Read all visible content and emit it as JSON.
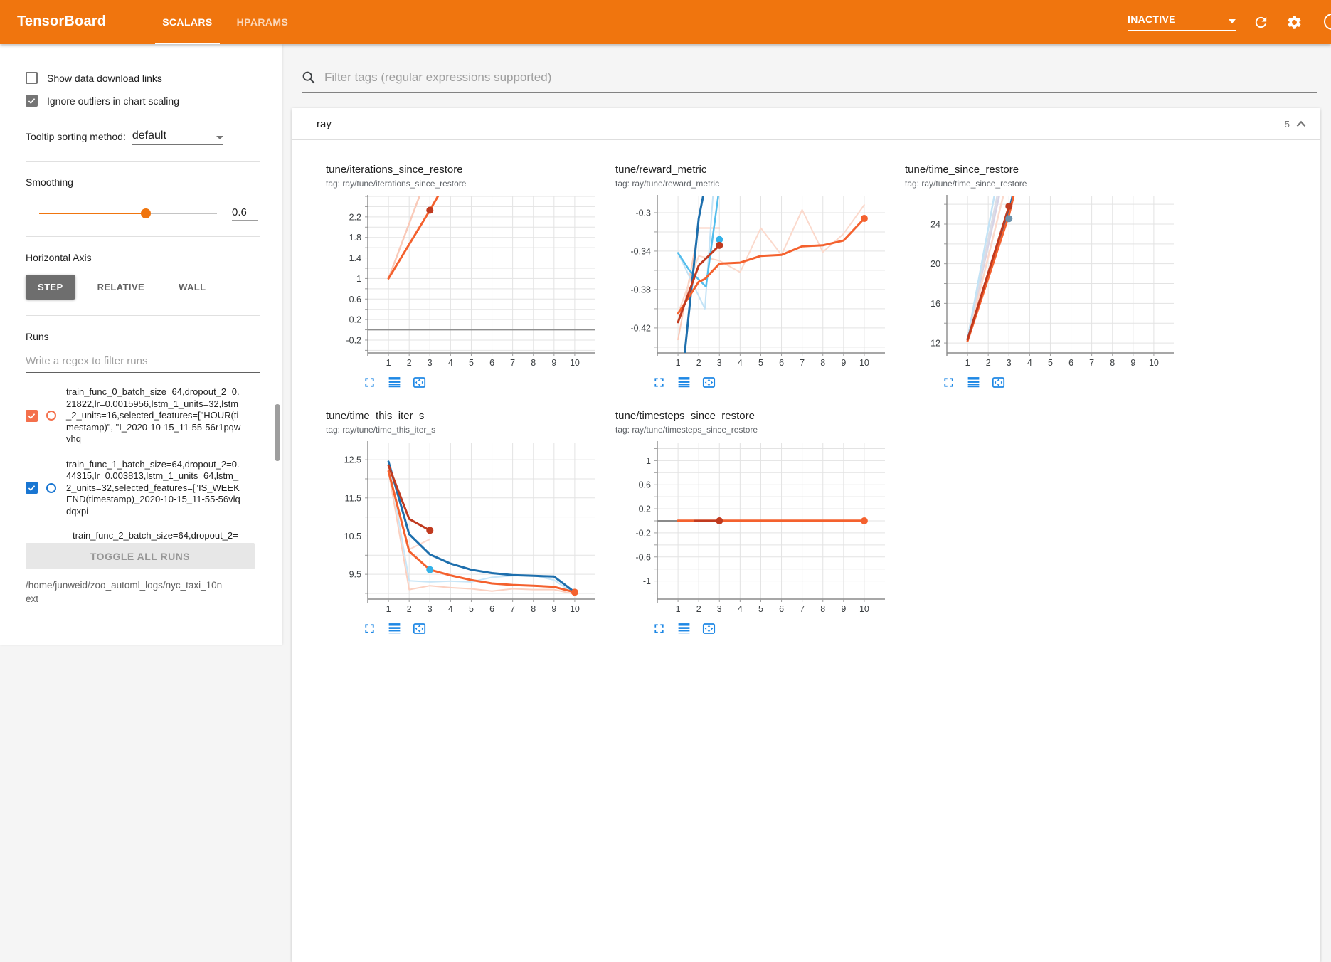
{
  "header": {
    "title": "TensorBoard",
    "tabs": [
      {
        "label": "SCALARS",
        "active": true
      },
      {
        "label": "HPARAMS",
        "active": false
      }
    ],
    "status_dropdown": "INACTIVE",
    "bar_color": "#f0750e"
  },
  "sidebar": {
    "show_download_label": "Show data download links",
    "show_download_checked": false,
    "ignore_outliers_label": "Ignore outliers in chart scaling",
    "ignore_outliers_checked": true,
    "tooltip_sorting_label": "Tooltip sorting method:",
    "tooltip_sorting_value": "default",
    "smoothing_label": "Smoothing",
    "smoothing_value": "0.6",
    "horizontal_axis_label": "Horizontal Axis",
    "axis_modes": [
      "STEP",
      "RELATIVE",
      "WALL"
    ],
    "axis_mode_active": "STEP",
    "runs_label": "Runs",
    "runs_filter_placeholder": "Write a regex to filter runs",
    "runs": [
      {
        "label": "train_func_0_batch_size=64,dropout_2=0.21822,lr=0.0015956,lstm_1_units=32,lstm_2_units=16,selected_features=[\"HOUR(timestamp)\", \"I_2020-10-15_11-55-56r1pqwvhq",
        "color": "#f4704c",
        "checked": true,
        "clipped": false
      },
      {
        "label": "train_func_1_batch_size=64,dropout_2=0.44315,lr=0.003813,lstm_1_units=64,lstm_2_units=32,selected_features=[\"IS_WEEKEND(timestamp)_2020-10-15_11-55-56vlqdqxpi",
        "color": "#1976d2",
        "checked": true,
        "clipped": false
      },
      {
        "label": "train_func_2_batch_size=64,dropout_2=",
        "color": "#9e9e9e",
        "checked": false,
        "clipped": true
      }
    ],
    "toggle_all_label": "TOGGLE ALL RUNS",
    "logdir": "/home/junweid/zoo_automl_logs/nyc_taxi_10next"
  },
  "main": {
    "filter_placeholder": "Filter tags (regular expressions supported)",
    "section": {
      "name": "ray",
      "count": "5"
    },
    "chart_toolbar_icons": [
      "expand-chart-icon",
      "run-lines-icon",
      "fit-domain-icon"
    ]
  },
  "chart_data": [
    {
      "type": "line",
      "title": "tune/iterations_since_restore",
      "tag": "tag: ray/tune/iterations_since_restore",
      "x_ticks": [
        1,
        2,
        3,
        4,
        5,
        6,
        7,
        8,
        9,
        10
      ],
      "x_range": [
        0,
        11
      ],
      "y_range": [
        -0.45,
        2.6
      ],
      "y_tick_values": [
        2.2,
        1.8,
        1.4,
        1,
        0.6,
        0.2,
        -0.2
      ],
      "y_tick_labels": [
        "2.2",
        "1.8",
        "1.4",
        "1",
        "0.6",
        "0.2",
        "-0.2"
      ],
      "y_minor_step": 0.2,
      "series": [
        {
          "name": "zero-baseline",
          "color": "#8f8f8f",
          "width": 1.8,
          "points": [
            [
              0,
              0
            ],
            [
              11,
              0
            ]
          ]
        },
        {
          "name": "run0-raw",
          "color": "#f9c9b8",
          "width": 2.5,
          "points": [
            [
              1,
              1
            ],
            [
              2.68,
              2.8
            ]
          ]
        },
        {
          "name": "run0-smoothed",
          "color": "#f4612e",
          "width": 3,
          "points": [
            [
              1,
              1
            ],
            [
              3,
              2.33
            ],
            [
              3.5,
              2.68
            ]
          ]
        }
      ],
      "dots": [
        {
          "x": 3,
          "y": 2.33,
          "color": "#c03a1f"
        }
      ]
    },
    {
      "type": "line",
      "title": "tune/reward_metric",
      "tag": "tag: ray/tune/reward_metric",
      "x_ticks": [
        1,
        2,
        3,
        4,
        5,
        6,
        7,
        8,
        9,
        10
      ],
      "x_range": [
        0,
        11
      ],
      "y_range": [
        -0.446,
        -0.283
      ],
      "y_tick_values": [
        -0.3,
        -0.34,
        -0.38,
        -0.42
      ],
      "y_tick_labels": [
        "-0.3",
        "-0.34",
        "-0.38",
        "-0.42"
      ],
      "y_minor_step": 0.02,
      "series": [
        {
          "name": "run0-raw",
          "color": "#f9c9b8",
          "width": 2,
          "points": [
            [
              1,
              -0.432
            ],
            [
              2,
              -0.316
            ],
            [
              3,
              -0.316
            ]
          ]
        },
        {
          "name": "run1-raw-pale",
          "color": "#c3e3f6",
          "width": 2,
          "points": [
            [
              1,
              -0.342
            ],
            [
              2.3,
              -0.4
            ],
            [
              2.73,
              -0.27
            ]
          ]
        },
        {
          "name": "run-orange-raw",
          "color": "#fbd9cc",
          "width": 2,
          "points": [
            [
              1,
              -0.405
            ],
            [
              2,
              -0.345
            ],
            [
              3,
              -0.35
            ],
            [
              4,
              -0.362
            ],
            [
              5,
              -0.316
            ],
            [
              6,
              -0.344
            ],
            [
              7,
              -0.297
            ],
            [
              8,
              -0.341
            ],
            [
              9,
              -0.322
            ],
            [
              10,
              -0.292
            ]
          ]
        },
        {
          "name": "run1-raw",
          "color": "#53bdec",
          "width": 2.5,
          "points": [
            [
              1,
              -0.342
            ],
            [
              1.55,
              -0.36
            ],
            [
              2.35,
              -0.377
            ],
            [
              3.02,
              -0.27
            ]
          ]
        },
        {
          "name": "run1-smoothed",
          "color": "#1e6fad",
          "width": 3,
          "points": [
            [
              1.32,
              -0.447
            ],
            [
              2,
              -0.306
            ],
            [
              2.33,
              -0.27
            ]
          ]
        },
        {
          "name": "run-orange-smoothed",
          "color": "#f4612e",
          "width": 3,
          "points": [
            [
              1,
              -0.405
            ],
            [
              2,
              -0.372
            ],
            [
              2.3,
              -0.369
            ],
            [
              3,
              -0.353
            ],
            [
              4,
              -0.352
            ],
            [
              5,
              -0.345
            ],
            [
              6,
              -0.344
            ],
            [
              7,
              -0.335
            ],
            [
              8,
              -0.334
            ],
            [
              9,
              -0.329
            ],
            [
              10,
              -0.306
            ]
          ]
        },
        {
          "name": "run0-smoothed",
          "color": "#c03a1f",
          "width": 3,
          "points": [
            [
              1,
              -0.414
            ],
            [
              2,
              -0.355
            ],
            [
              3,
              -0.334
            ]
          ]
        }
      ],
      "dots": [
        {
          "x": 3,
          "y": -0.328,
          "color": "#33b2e9"
        },
        {
          "x": 3,
          "y": -0.334,
          "color": "#c03a1f"
        },
        {
          "x": 10,
          "y": -0.306,
          "color": "#f4612e"
        }
      ]
    },
    {
      "type": "line",
      "title": "tune/time_since_restore",
      "tag": "tag: ray/tune/time_since_restore",
      "x_ticks": [
        1,
        2,
        3,
        4,
        5,
        6,
        7,
        8,
        9,
        10
      ],
      "x_range": [
        0,
        11
      ],
      "y_range": [
        11,
        26.8
      ],
      "y_tick_values": [
        24,
        20,
        16,
        12
      ],
      "y_tick_labels": [
        "24",
        "20",
        "16",
        "12"
      ],
      "y_minor_step": 2,
      "series": [
        {
          "name": "raw-lavender",
          "color": "#d7d3e6",
          "width": 2.5,
          "points": [
            [
              1,
              12.4
            ],
            [
              2.6,
              27.5
            ]
          ]
        },
        {
          "name": "raw-gray",
          "color": "#dcdce4",
          "width": 2.5,
          "points": [
            [
              1,
              12.4
            ],
            [
              2.5,
              27.5
            ]
          ]
        },
        {
          "name": "raw-pale-blue",
          "color": "#c3e3f6",
          "width": 2.5,
          "points": [
            [
              1,
              12.4
            ],
            [
              2.35,
              27.5
            ]
          ]
        },
        {
          "name": "raw-pale-pink",
          "color": "#fbd9cc",
          "width": 2.5,
          "points": [
            [
              1,
              12.2
            ],
            [
              2.8,
              27.5
            ]
          ]
        },
        {
          "name": "run1-smoothed",
          "color": "#1e6fad",
          "width": 3,
          "points": [
            [
              1,
              12.4
            ],
            [
              3,
              25.3
            ],
            [
              3.25,
              27.5
            ]
          ]
        },
        {
          "name": "run-orange-smoothed",
          "color": "#f4612e",
          "width": 3,
          "points": [
            [
              1,
              12.2
            ],
            [
              3,
              24.9
            ],
            [
              3.3,
              27.5
            ]
          ]
        },
        {
          "name": "run0-smoothed",
          "color": "#c03a1f",
          "width": 3,
          "points": [
            [
              1,
              12.35
            ],
            [
              3,
              25.8
            ]
          ]
        }
      ],
      "dots": [
        {
          "x": 3,
          "y": 25.8,
          "color": "#c03a1f"
        },
        {
          "x": 3,
          "y": 24.55,
          "color": "#6b93ad"
        }
      ]
    },
    {
      "type": "line",
      "title": "tune/time_this_iter_s",
      "tag": "tag: ray/tune/time_this_iter_s",
      "x_ticks": [
        1,
        2,
        3,
        4,
        5,
        6,
        7,
        8,
        9,
        10
      ],
      "x_range": [
        0,
        11
      ],
      "y_range": [
        8.85,
        12.95
      ],
      "y_tick_values": [
        12.5,
        11.5,
        10.5,
        9.5
      ],
      "y_tick_labels": [
        "12.5",
        "11.5",
        "10.5",
        "9.5"
      ],
      "y_minor_step": 0.5,
      "series": [
        {
          "name": "raw-pale-blue",
          "color": "#c9e6f7",
          "width": 2,
          "points": [
            [
              1,
              12.45
            ],
            [
              2,
              9.33
            ],
            [
              3,
              9.3
            ],
            [
              4,
              9.32
            ],
            [
              5,
              9.3
            ],
            [
              6,
              9.42
            ],
            [
              7,
              9.46
            ],
            [
              8,
              9.47
            ],
            [
              9,
              9.35
            ],
            [
              10,
              8.98
            ]
          ]
        },
        {
          "name": "raw-pale-pink",
          "color": "#fbd0c0",
          "width": 2,
          "points": [
            [
              1,
              12.2
            ],
            [
              2,
              9.1
            ],
            [
              3,
              9.2
            ],
            [
              4,
              9.15
            ],
            [
              5,
              9.12
            ],
            [
              6,
              9.06
            ],
            [
              7,
              9.12
            ],
            [
              8,
              9.1
            ],
            [
              9,
              9.1
            ],
            [
              10,
              8.98
            ]
          ]
        },
        {
          "name": "raw-pink-spur",
          "color": "#fbd9ce",
          "width": 2,
          "points": [
            [
              2,
              10.15
            ],
            [
              3,
              10.42
            ]
          ]
        },
        {
          "name": "run1-smoothed",
          "color": "#1e6fad",
          "width": 3,
          "points": [
            [
              1,
              12.45
            ],
            [
              2,
              10.55
            ],
            [
              3,
              10.02
            ],
            [
              4,
              9.78
            ],
            [
              5,
              9.62
            ],
            [
              6,
              9.53
            ],
            [
              7,
              9.48
            ],
            [
              8,
              9.46
            ],
            [
              9,
              9.44
            ],
            [
              10,
              9.03
            ]
          ]
        },
        {
          "name": "run-orange-smoothed",
          "color": "#f4612e",
          "width": 3,
          "points": [
            [
              1,
              12.2
            ],
            [
              2,
              10.1
            ],
            [
              3,
              9.62
            ],
            [
              4,
              9.47
            ],
            [
              5,
              9.35
            ],
            [
              6,
              9.26
            ],
            [
              7,
              9.22
            ],
            [
              8,
              9.2
            ],
            [
              9,
              9.17
            ],
            [
              10,
              9.03
            ]
          ]
        },
        {
          "name": "run0-smoothed",
          "color": "#c03a1f",
          "width": 3,
          "points": [
            [
              1,
              12.35
            ],
            [
              2,
              10.95
            ],
            [
              3,
              10.65
            ]
          ]
        }
      ],
      "dots": [
        {
          "x": 3,
          "y": 10.65,
          "color": "#c03a1f"
        },
        {
          "x": 3,
          "y": 9.62,
          "color": "#33b2e9"
        },
        {
          "x": 10,
          "y": 9.03,
          "color": "#f4612e"
        }
      ]
    },
    {
      "type": "line",
      "title": "tune/timesteps_since_restore",
      "tag": "tag: ray/tune/timesteps_since_restore",
      "x_ticks": [
        1,
        2,
        3,
        4,
        5,
        6,
        7,
        8,
        9,
        10
      ],
      "x_range": [
        0,
        11
      ],
      "y_range": [
        -1.3,
        1.3
      ],
      "y_tick_values": [
        1,
        0.6,
        0.2,
        -0.2,
        -0.6,
        -1
      ],
      "y_tick_labels": [
        "1",
        "0.6",
        "0.2",
        "-0.2",
        "-0.6",
        "-1"
      ],
      "y_minor_step": 0.2,
      "series": [
        {
          "name": "zero-baseline",
          "color": "#8a8a8a",
          "width": 2,
          "points": [
            [
              0,
              0
            ],
            [
              1.6,
              0
            ]
          ]
        },
        {
          "name": "run-orange-smoothed",
          "color": "#f4612e",
          "width": 3.5,
          "points": [
            [
              1,
              0
            ],
            [
              10,
              0
            ]
          ]
        },
        {
          "name": "run0-smoothed",
          "color": "#c03a1f",
          "width": 3,
          "points": [
            [
              1.8,
              0
            ],
            [
              3,
              0
            ]
          ]
        }
      ],
      "dots": [
        {
          "x": 3,
          "y": 0,
          "color": "#c03a1f"
        },
        {
          "x": 10,
          "y": 0,
          "color": "#f4612e"
        }
      ]
    }
  ]
}
